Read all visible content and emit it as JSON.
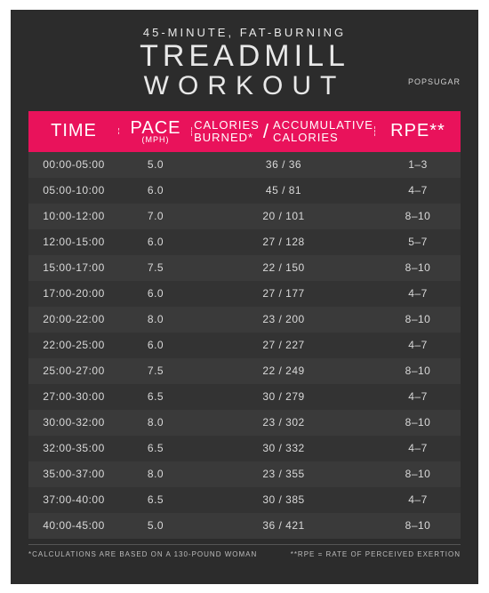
{
  "pretitle": "45-MINUTE, FAT-BURNING",
  "title": "TREADMILL",
  "subtitle": "WORKOUT",
  "brand": "POPSUGAR",
  "colors": {
    "card_bg": "#2c2c2c",
    "header_bg": "#e9125b",
    "row_odd": "#3a3a3a",
    "row_even": "#333333",
    "text": "#d9d9d9",
    "title_text": "#e8e8e8"
  },
  "headers": {
    "time": "TIME",
    "pace": "PACE",
    "pace_sub": "(MPH)",
    "cal_burned": "CALORIES BURNED*",
    "cal_accum": "ACCUMULATIVE CALORIES",
    "slash": "/",
    "rpe": "RPE**"
  },
  "rows": [
    {
      "time": "00:00-05:00",
      "pace": "5.0",
      "cal": "36 / 36",
      "rpe": "1–3"
    },
    {
      "time": "05:00-10:00",
      "pace": "6.0",
      "cal": "45 / 81",
      "rpe": "4–7"
    },
    {
      "time": "10:00-12:00",
      "pace": "7.0",
      "cal": "20 / 101",
      "rpe": "8–10"
    },
    {
      "time": "12:00-15:00",
      "pace": "6.0",
      "cal": "27 / 128",
      "rpe": "5–7"
    },
    {
      "time": "15:00-17:00",
      "pace": "7.5",
      "cal": "22 / 150",
      "rpe": "8–10"
    },
    {
      "time": "17:00-20:00",
      "pace": "6.0",
      "cal": "27 / 177",
      "rpe": "4–7"
    },
    {
      "time": "20:00-22:00",
      "pace": "8.0",
      "cal": "23 / 200",
      "rpe": "8–10"
    },
    {
      "time": "22:00-25:00",
      "pace": "6.0",
      "cal": "27 / 227",
      "rpe": "4–7"
    },
    {
      "time": "25:00-27:00",
      "pace": "7.5",
      "cal": "22 / 249",
      "rpe": "8–10"
    },
    {
      "time": "27:00-30:00",
      "pace": "6.5",
      "cal": "30 / 279",
      "rpe": "4–7"
    },
    {
      "time": "30:00-32:00",
      "pace": "8.0",
      "cal": "23 / 302",
      "rpe": "8–10"
    },
    {
      "time": "32:00-35:00",
      "pace": "6.5",
      "cal": "30 / 332",
      "rpe": "4–7"
    },
    {
      "time": "35:00-37:00",
      "pace": "8.0",
      "cal": "23 / 355",
      "rpe": "8–10"
    },
    {
      "time": "37:00-40:00",
      "pace": "6.5",
      "cal": "30 / 385",
      "rpe": "4–7"
    },
    {
      "time": "40:00-45:00",
      "pace": "5.0",
      "cal": "36 / 421",
      "rpe": "8–10"
    }
  ],
  "footer": {
    "left": "*CALCULATIONS ARE BASED ON A 130-POUND WOMAN",
    "right": "**RPE = RATE OF PERCEIVED EXERTION"
  }
}
